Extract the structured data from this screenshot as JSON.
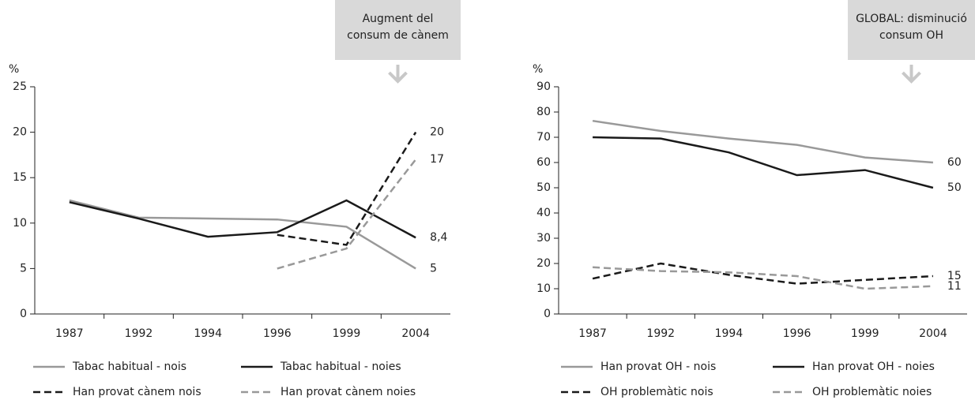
{
  "chart_data": [
    {
      "type": "line",
      "y_label": "%",
      "annotation": [
        "Augment del",
        "consum de cànem"
      ],
      "categories": [
        "1987",
        "1992",
        "1994",
        "1996",
        "1999",
        "2004"
      ],
      "ylim": [
        0,
        25
      ],
      "yticks": [
        0,
        5,
        10,
        15,
        20,
        25
      ],
      "series": [
        {
          "name": "Tabac habitual - nois",
          "color": "#999999",
          "dashed": false,
          "values": [
            12.5,
            10.6,
            10.5,
            10.4,
            9.6,
            5
          ]
        },
        {
          "name": "Tabac habitual - noies",
          "color": "#1a1a1a",
          "dashed": false,
          "values": [
            12.3,
            10.5,
            8.5,
            9.0,
            12.5,
            8.4
          ],
          "value_labels": [
            null,
            null,
            null,
            null,
            null,
            "8,4"
          ]
        },
        {
          "name": "Han provat cànem nois",
          "color": "#1a1a1a",
          "dashed": true,
          "values": [
            null,
            null,
            null,
            8.7,
            7.6,
            20
          ]
        },
        {
          "name": "Han provat cànem noies",
          "color": "#999999",
          "dashed": true,
          "values": [
            null,
            null,
            null,
            5,
            7.2,
            17
          ]
        }
      ]
    },
    {
      "type": "line",
      "y_label": "%",
      "annotation": [
        "GLOBAL: disminució",
        "consum OH"
      ],
      "categories": [
        "1987",
        "1992",
        "1994",
        "1996",
        "1999",
        "2004"
      ],
      "ylim": [
        0,
        90
      ],
      "yticks": [
        0,
        10,
        20,
        30,
        40,
        50,
        60,
        70,
        80,
        90
      ],
      "series": [
        {
          "name": "Han provat OH - nois",
          "color": "#999999",
          "dashed": false,
          "values": [
            76.5,
            72.5,
            69.5,
            67,
            62,
            60
          ]
        },
        {
          "name": "Han provat OH - noies",
          "color": "#1a1a1a",
          "dashed": false,
          "values": [
            70,
            69.5,
            64,
            55,
            57,
            50
          ]
        },
        {
          "name": "OH problemàtic nois",
          "color": "#1a1a1a",
          "dashed": true,
          "values": [
            14,
            20,
            15.5,
            12,
            13.5,
            15
          ]
        },
        {
          "name": "OH problemàtic noies",
          "color": "#999999",
          "dashed": true,
          "values": [
            18.5,
            17,
            16.5,
            15,
            10,
            11
          ]
        }
      ]
    }
  ]
}
